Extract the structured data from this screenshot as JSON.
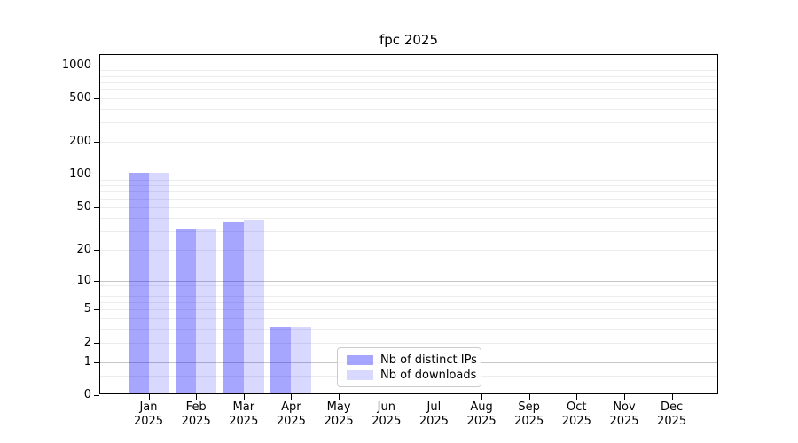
{
  "figure": {
    "title": "fpc 2025",
    "background": "#ffffff"
  },
  "chart_data": {
    "type": "bar",
    "title": "fpc 2025",
    "x_months": [
      "Jan",
      "Feb",
      "Mar",
      "Apr",
      "May",
      "Jun",
      "Jul",
      "Aug",
      "Sep",
      "Oct",
      "Nov",
      "Dec"
    ],
    "x_year": "2025",
    "series": [
      {
        "name": "Nb of distinct IPs",
        "color": "rgba(0,0,255,0.35)",
        "values": [
          100,
          30,
          35,
          3,
          0,
          0,
          0,
          0,
          0,
          0,
          0,
          0
        ]
      },
      {
        "name": "Nb of downloads",
        "color": "rgba(0,0,255,0.15)",
        "values": [
          100,
          30,
          37,
          3,
          0,
          0,
          0,
          0,
          0,
          0,
          0,
          0
        ]
      }
    ],
    "y_axis": {
      "scale": "log1p",
      "ticks": [
        0,
        1,
        2,
        5,
        10,
        20,
        50,
        100,
        200,
        500,
        1000
      ],
      "top_value": 1320
    },
    "gridlines": {
      "major": [
        1,
        10,
        100,
        1000
      ],
      "minor": [
        0.25,
        0.5,
        0.75,
        2,
        3,
        4,
        5,
        6,
        7,
        8,
        9,
        20,
        30,
        40,
        50,
        60,
        70,
        80,
        90,
        200,
        300,
        400,
        500,
        600,
        700,
        800,
        900
      ]
    },
    "legend": {
      "entries": [
        "Nb of distinct IPs",
        "Nb of downloads"
      ],
      "position": "lower-center"
    }
  },
  "colors": {
    "bar_distinct_ips": "rgba(0,0,255,0.35)",
    "bar_downloads": "rgba(0,0,255,0.15)",
    "grid_major": "#c6c6c6",
    "grid_minor": "#ededed",
    "axis": "#000000",
    "legend_border": "#cccccc",
    "text": "#000000"
  }
}
